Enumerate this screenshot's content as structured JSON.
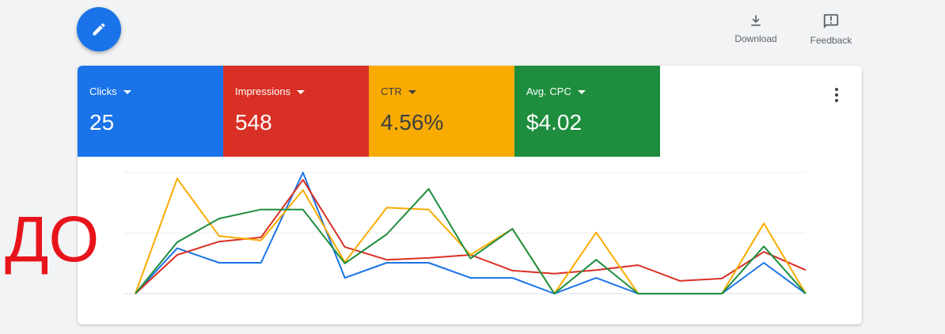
{
  "toolbar": {
    "download": "Download",
    "feedback": "Feedback"
  },
  "metrics": [
    {
      "label": "Clicks",
      "value": "25"
    },
    {
      "label": "Impressions",
      "value": "548"
    },
    {
      "label": "CTR",
      "value": "4.56%"
    },
    {
      "label": "Avg. CPC",
      "value": "$4.02"
    }
  ],
  "annotation": "ДО",
  "chart_data": {
    "type": "line",
    "ylim": [
      0,
      2
    ],
    "yticks": [
      0,
      1,
      2
    ],
    "grid": true,
    "series": [
      {
        "color": "#1a73e8",
        "values": [
          0,
          0.75,
          0.51,
          0.51,
          2.0,
          0.26,
          0.51,
          0.51,
          0.26,
          0.26,
          0,
          0.26,
          0,
          0,
          0,
          0.51,
          0
        ]
      },
      {
        "color": "#d93025",
        "values": [
          0,
          0.64,
          0.86,
          0.93,
          1.88,
          0.77,
          0.56,
          0.59,
          0.64,
          0.38,
          0.33,
          0.39,
          0.47,
          0.21,
          0.25,
          0.69,
          0.39
        ]
      },
      {
        "color": "#f9ab00",
        "values": [
          0,
          1.9,
          0.95,
          0.88,
          1.71,
          0.52,
          1.42,
          1.39,
          0.64,
          1.07,
          0,
          1.01,
          0,
          0,
          0,
          1.16,
          0
        ]
      },
      {
        "color": "#1e8e3e",
        "values": [
          0,
          0.85,
          1.24,
          1.39,
          1.39,
          0.5,
          0.98,
          1.73,
          0.58,
          1.07,
          0,
          0.56,
          0,
          0,
          0,
          0.78,
          0
        ]
      }
    ]
  }
}
